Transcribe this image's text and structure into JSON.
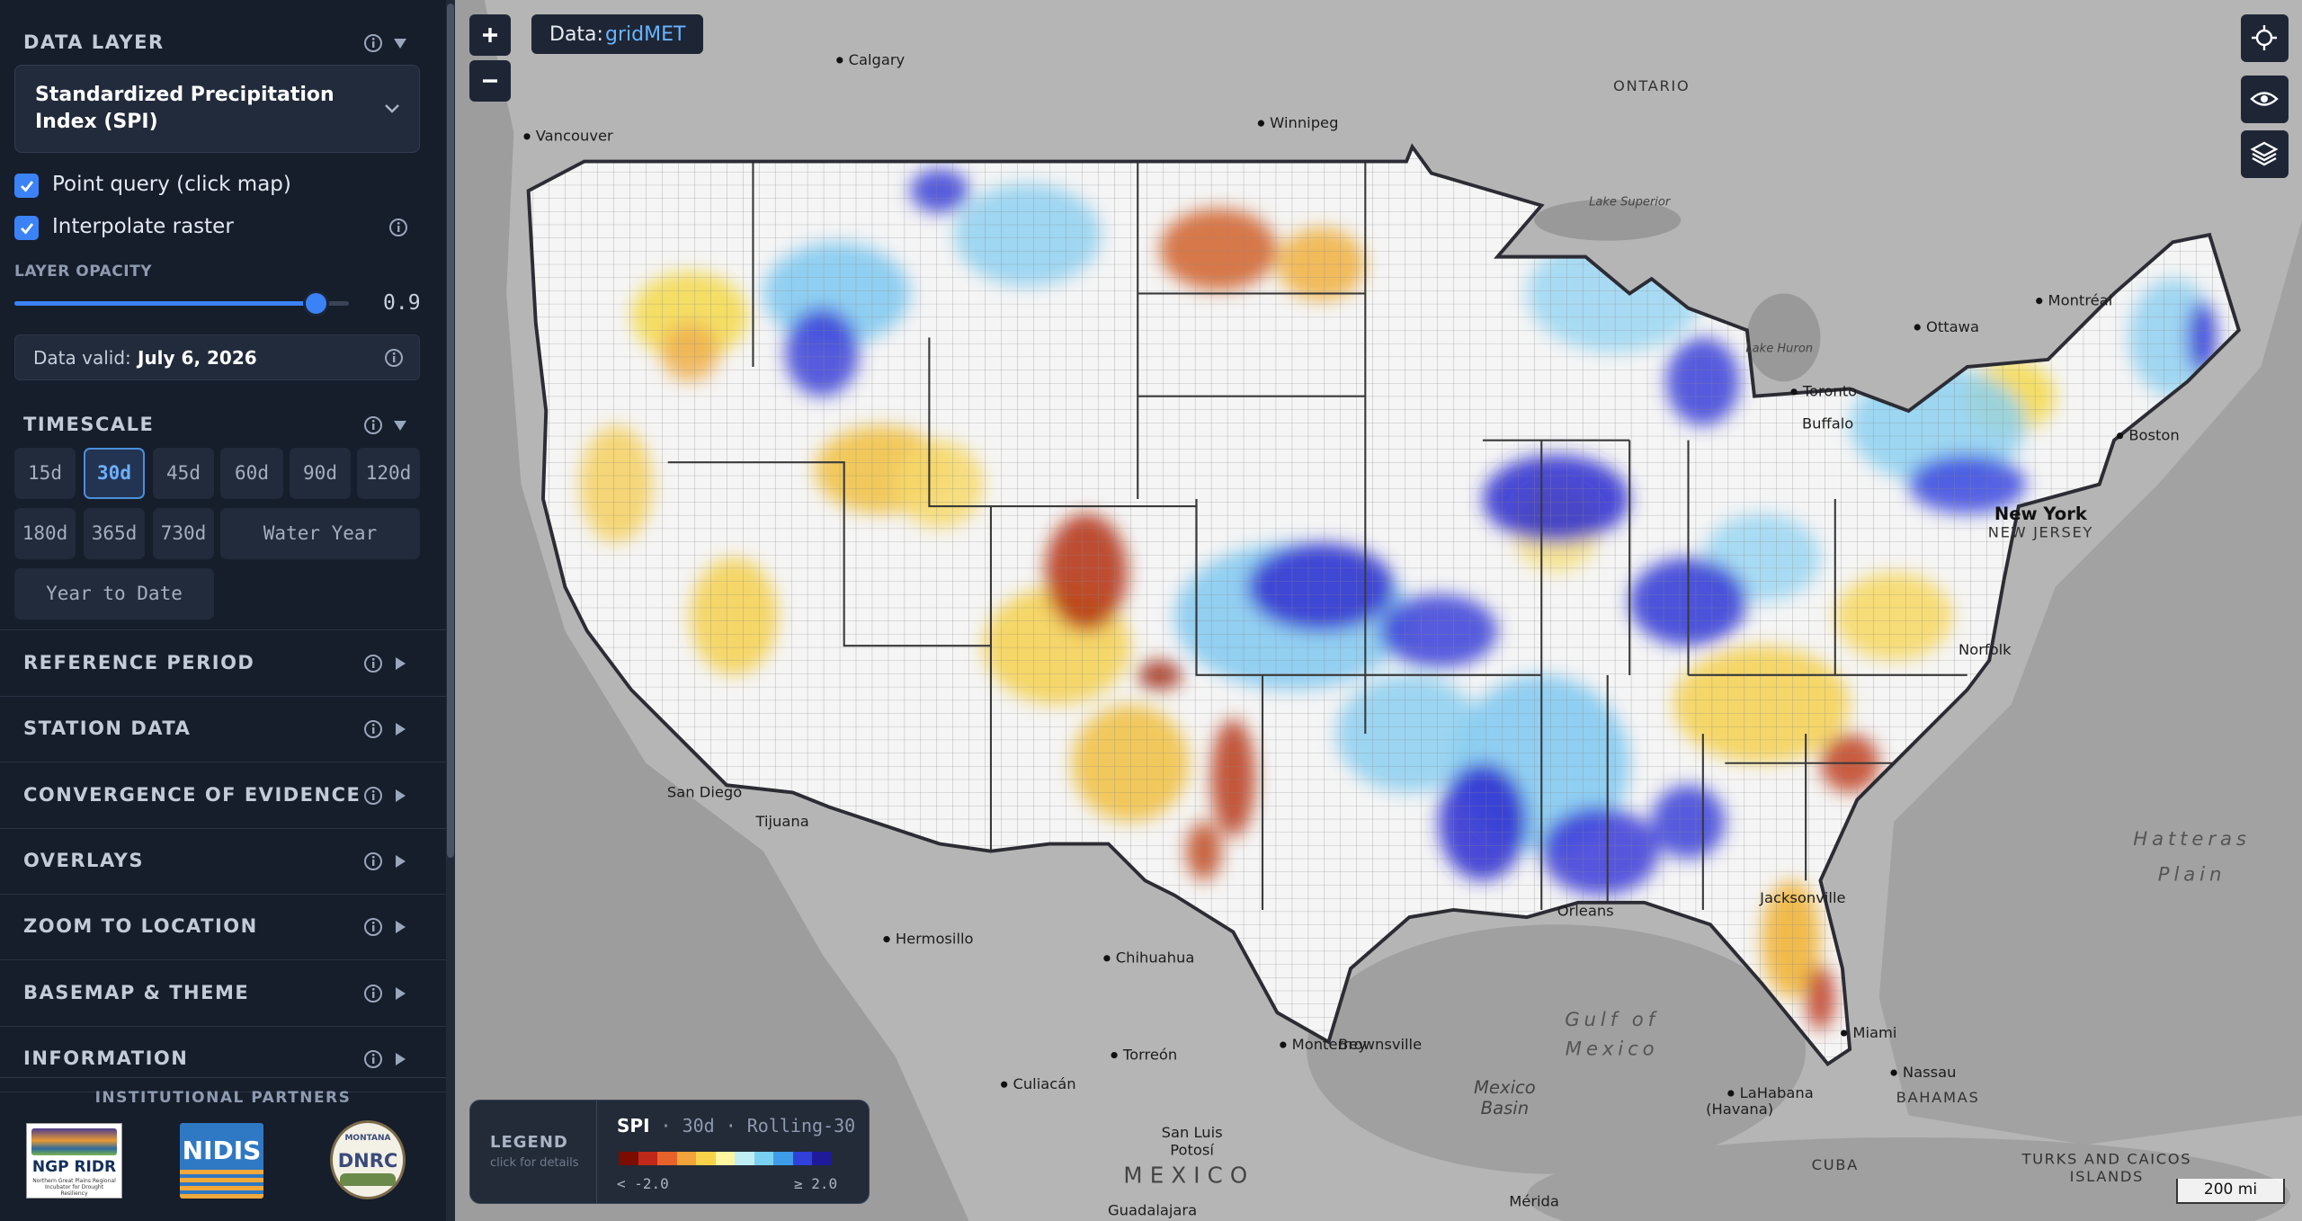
{
  "sidebar": {
    "data_layer": {
      "title": "DATA LAYER",
      "selected": "Standardized Precipitation Index (SPI)"
    },
    "options": [
      {
        "label": "Point query (click map)",
        "checked": true
      },
      {
        "label": "Interpolate raster",
        "checked": true
      }
    ],
    "opacity": {
      "label": "LAYER OPACITY",
      "value": 0.9
    },
    "data_valid": {
      "label": "Data valid:",
      "date": "July 6, 2026"
    },
    "timescale": {
      "title": "TIMESCALE",
      "options": [
        "15d",
        "30d",
        "45d",
        "60d",
        "90d",
        "120d",
        "180d",
        "365d",
        "730d",
        "Water Year",
        "Year to Date"
      ],
      "selected_index": 1
    },
    "sections": [
      "REFERENCE PERIOD",
      "STATION DATA",
      "CONVERGENCE OF EVIDENCE",
      "OVERLAYS",
      "ZOOM TO LOCATION",
      "BASEMAP & THEME",
      "INFORMATION"
    ],
    "partners": {
      "title": "INSTITUTIONAL PARTNERS",
      "logos": [
        {
          "name": "NGP RIDR",
          "subtitle": "Northern Great Plains Regional Incubator for Drought Resiliency"
        },
        {
          "name": "NIDIS"
        },
        {
          "name": "DNRC",
          "subtitle": "MONTANA"
        }
      ]
    }
  },
  "map": {
    "source": {
      "label": "Data:",
      "name": "gridMET"
    },
    "scale": "200 mi",
    "labels": [
      "Calgary",
      "Vancouver",
      "Winnipeg",
      "ONTARIO",
      "Lake Superior",
      "Lake Huron",
      "Toronto",
      "Buffalo",
      "Ottawa",
      "Montréal",
      "Boston",
      "New York",
      "NEW JERSEY",
      "Norfolk",
      "Jacksonville",
      "Miami",
      "Orleans",
      "Gulf of",
      "Mexico",
      "Mexico",
      "Basin",
      "LaHabana",
      "(Havana)",
      "CUBA",
      "BAHAMAS",
      "Nassau",
      "Hatteras",
      "Plain",
      "MEXICO",
      "Monterrey",
      "Brownsville",
      "Torreón",
      "Culiacán",
      "Chihuahua",
      "Hermosillo",
      "San Luis",
      "Potosí",
      "Tijuana",
      "San Diego",
      "TURKS AND CAICOS",
      "ISLANDS",
      "Mérida",
      "Guadalajara"
    ],
    "legend": {
      "title": "LEGEND",
      "hint": "click for details",
      "index": "SPI",
      "separator": "·",
      "timescale": "30d",
      "window": "Rolling-30",
      "min_label": "< -2.0",
      "max_label": "≥ 2.0",
      "ramp": [
        "#7a0c00",
        "#c0281a",
        "#e8622a",
        "#f2a33a",
        "#f7d34a",
        "#fdf6a0",
        "#bfeef5",
        "#7ad0f0",
        "#3f9ce8",
        "#3040d8",
        "#1f1a9a"
      ]
    }
  }
}
